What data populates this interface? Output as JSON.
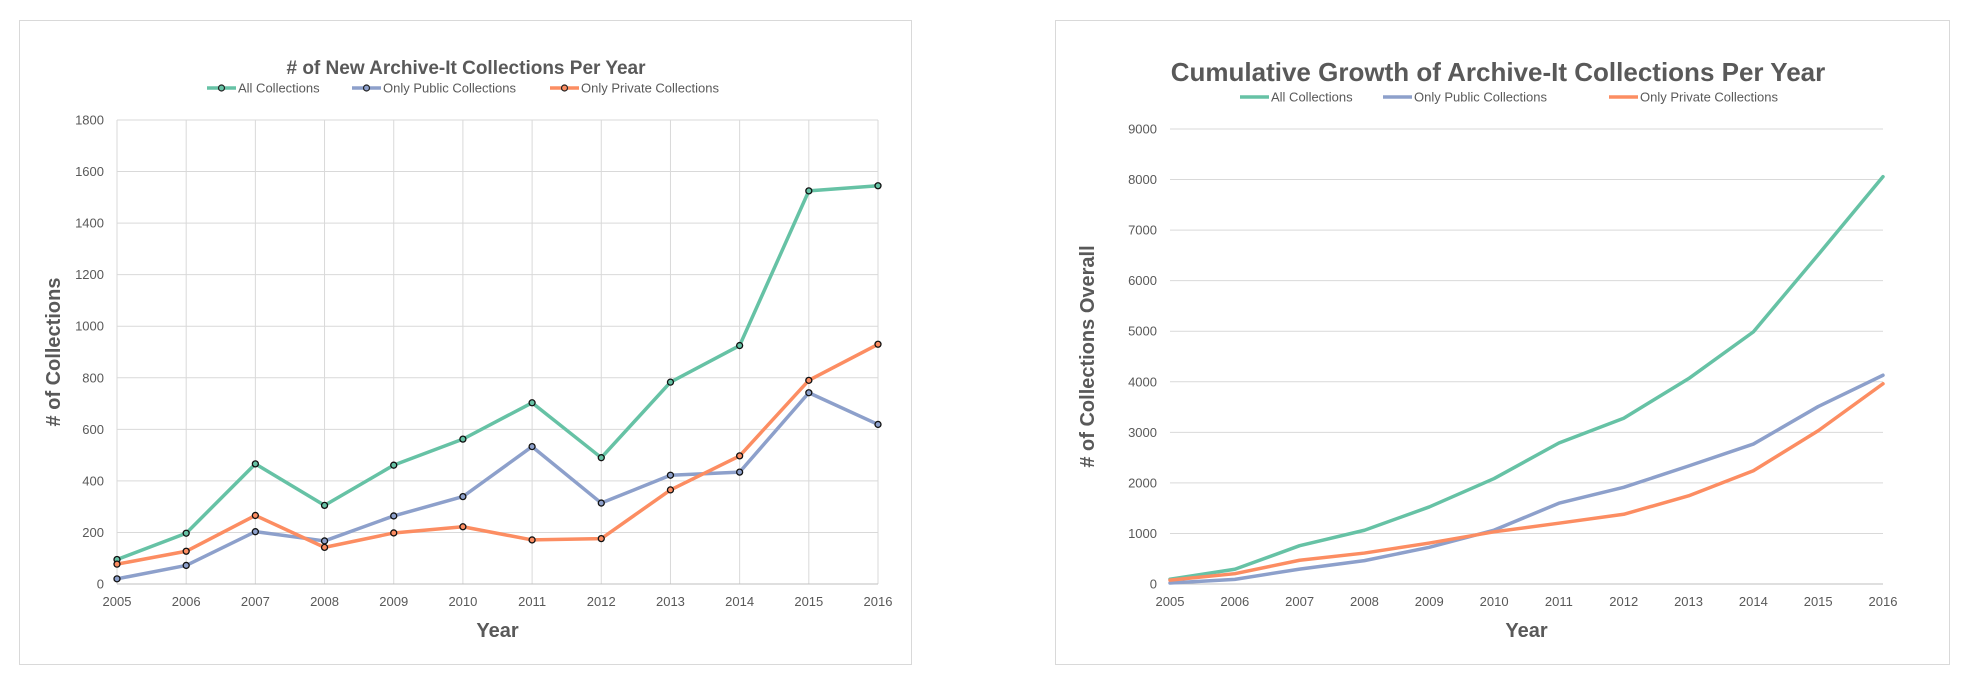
{
  "chart_data": [
    {
      "type": "line",
      "title": "# of New Archive-It Collections Per Year",
      "xlabel": "Year",
      "ylabel": "# of Collections",
      "categories": [
        "2005",
        "2006",
        "2007",
        "2008",
        "2009",
        "2010",
        "2011",
        "2012",
        "2013",
        "2014",
        "2015",
        "2016"
      ],
      "ylim": [
        0,
        1800
      ],
      "yticks": [
        0,
        200,
        400,
        600,
        800,
        1000,
        1200,
        1400,
        1600,
        1800
      ],
      "grid": "both",
      "markers": true,
      "legend": "top",
      "series": [
        {
          "name": "All Collections",
          "color": "#66c2a5",
          "values": [
            95,
            197,
            466,
            305,
            461,
            562,
            703,
            490,
            783,
            925,
            1525,
            1545
          ]
        },
        {
          "name": "Only Public Collections",
          "color": "#8da0cb",
          "values": [
            20,
            72,
            203,
            167,
            264,
            339,
            533,
            314,
            422,
            434,
            742,
            619
          ]
        },
        {
          "name": "Only Private Collections",
          "color": "#fc8d62",
          "values": [
            77,
            127,
            266,
            142,
            198,
            222,
            171,
            176,
            365,
            497,
            790,
            930
          ]
        }
      ]
    },
    {
      "type": "line",
      "title": "Cumulative Growth of Archive-It Collections Per Year",
      "xlabel": "Year",
      "ylabel": "# of Collections Overall",
      "categories": [
        "2005",
        "2006",
        "2007",
        "2008",
        "2009",
        "2010",
        "2011",
        "2012",
        "2013",
        "2014",
        "2015",
        "2016"
      ],
      "ylim": [
        0,
        9000
      ],
      "yticks": [
        0,
        1000,
        2000,
        3000,
        4000,
        5000,
        6000,
        7000,
        8000,
        9000
      ],
      "grid": "horizontal",
      "markers": false,
      "legend": "top",
      "series": [
        {
          "name": "All Collections",
          "color": "#66c2a5",
          "values": [
            95,
            292,
            758,
            1063,
            1524,
            2086,
            2789,
            3279,
            4062,
            4987,
            6512,
            8057
          ]
        },
        {
          "name": "Only Public Collections",
          "color": "#8da0cb",
          "values": [
            20,
            92,
            295,
            462,
            726,
            1065,
            1598,
            1912,
            2334,
            2768,
            3510,
            4129
          ]
        },
        {
          "name": "Only Private Collections",
          "color": "#fc8d62",
          "values": [
            77,
            204,
            470,
            612,
            810,
            1032,
            1203,
            1379,
            1744,
            2241,
            3031,
            3961
          ]
        }
      ]
    }
  ]
}
